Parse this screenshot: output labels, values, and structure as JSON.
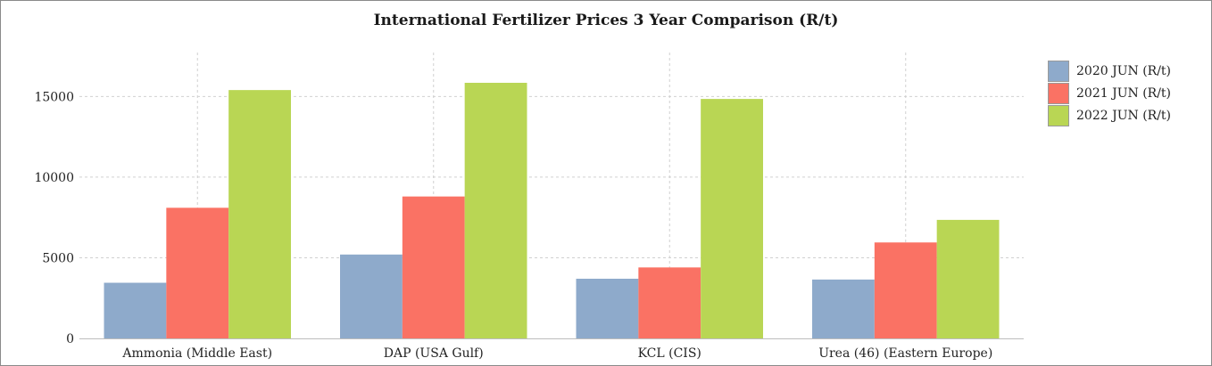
{
  "chart_data": {
    "type": "bar",
    "title": "International Fertilizer Prices 3 Year Comparison  (R/t)",
    "xlabel": "",
    "ylabel": "",
    "categories": [
      "Ammonia (Middle East)",
      "DAP (USA Gulf)",
      "KCL (CIS)",
      "Urea (46) (Eastern Europe)"
    ],
    "series": [
      {
        "name": "2020 JUN (R/t)",
        "color": "#8eaacb",
        "values": [
          3450,
          5200,
          3700,
          3650
        ]
      },
      {
        "name": "2021 JUN (R/t)",
        "color": "#fa7264",
        "values": [
          8100,
          8800,
          4400,
          5950
        ]
      },
      {
        "name": "2022 JUN (R/t)",
        "color": "#b9d654",
        "values": [
          15400,
          15850,
          14850,
          7350
        ]
      }
    ],
    "ylim": [
      0,
      18500
    ],
    "yticks": [
      0,
      5000,
      10000,
      15000
    ],
    "grid": true,
    "legend_position": "right"
  }
}
